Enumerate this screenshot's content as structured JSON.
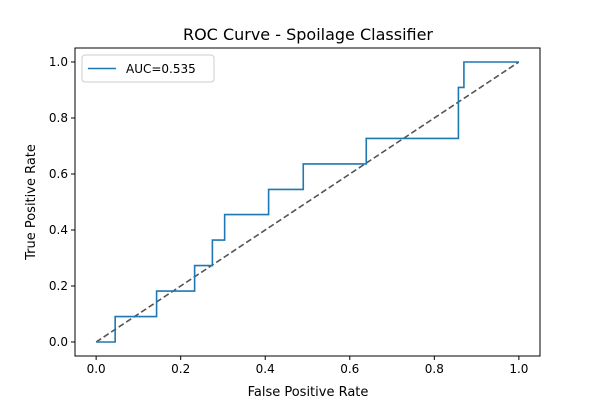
{
  "chart_data": {
    "type": "line",
    "title": "ROC Curve - Spoilage Classifier",
    "xlabel": "False Positive Rate",
    "ylabel": "True Positive Rate",
    "xlim": [
      -0.05,
      1.05
    ],
    "ylim": [
      -0.05,
      1.05
    ],
    "xticks": [
      0.0,
      0.2,
      0.4,
      0.6,
      0.8,
      1.0
    ],
    "xtick_labels": [
      "0.0",
      "0.2",
      "0.4",
      "0.6",
      "0.8",
      "1.0"
    ],
    "yticks": [
      0.0,
      0.2,
      0.4,
      0.6,
      0.8,
      1.0
    ],
    "ytick_labels": [
      "0.0",
      "0.2",
      "0.4",
      "0.6",
      "0.8",
      "1.0"
    ],
    "grid": false,
    "legend_position": "upper-left",
    "series": [
      {
        "name": "AUC=0.535",
        "color": "#1f77b4",
        "style": "solid",
        "x": [
          0.0,
          0.045,
          0.045,
          0.143,
          0.143,
          0.233,
          0.233,
          0.275,
          0.275,
          0.304,
          0.304,
          0.408,
          0.408,
          0.49,
          0.49,
          0.639,
          0.639,
          0.857,
          0.857,
          0.87,
          0.87,
          1.0
        ],
        "y": [
          0.0,
          0.0,
          0.091,
          0.091,
          0.182,
          0.182,
          0.273,
          0.273,
          0.364,
          0.364,
          0.455,
          0.455,
          0.545,
          0.545,
          0.636,
          0.636,
          0.727,
          0.727,
          0.909,
          0.909,
          1.0,
          1.0
        ]
      },
      {
        "color": "#555555",
        "style": "dashed",
        "x": [
          0.0,
          1.0
        ],
        "y": [
          0.0,
          1.0
        ]
      }
    ]
  }
}
